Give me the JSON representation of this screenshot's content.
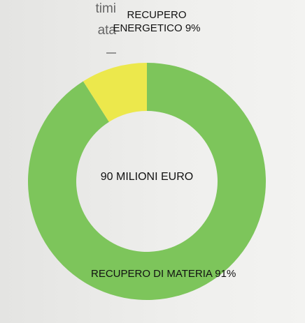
{
  "chart_data": {
    "type": "donut",
    "annotations": [
      "timi",
      "ata"
    ],
    "center_label": "90 MILIONI EURO",
    "categories": [
      "RECUPERO ENERGETICO",
      "RECUPERO DI MATERIA"
    ],
    "values": [
      9,
      91
    ],
    "value_labels": [
      "9%",
      "91%"
    ],
    "colors": [
      "#ece84c",
      "#7dc55b"
    ]
  }
}
